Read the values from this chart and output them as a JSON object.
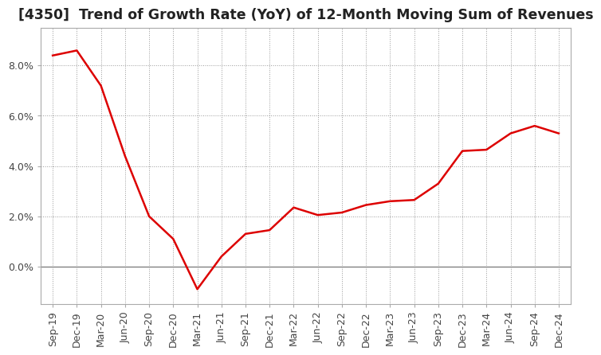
{
  "title": "[4350]  Trend of Growth Rate (YoY) of 12-Month Moving Sum of Revenues",
  "line_color": "#dd0000",
  "background_color": "#ffffff",
  "plot_bg_color": "#ffffff",
  "grid_color": "#999999",
  "x_labels": [
    "Sep-19",
    "Dec-19",
    "Mar-20",
    "Jun-20",
    "Sep-20",
    "Dec-20",
    "Mar-21",
    "Jun-21",
    "Sep-21",
    "Dec-21",
    "Mar-22",
    "Jun-22",
    "Sep-22",
    "Dec-22",
    "Mar-23",
    "Jun-23",
    "Sep-23",
    "Dec-23",
    "Mar-24",
    "Jun-24",
    "Sep-24",
    "Dec-24"
  ],
  "y_values": [
    0.084,
    0.086,
    0.072,
    0.044,
    0.02,
    0.011,
    -0.009,
    0.004,
    0.013,
    0.0145,
    0.0235,
    0.0205,
    0.0215,
    0.0245,
    0.026,
    0.0265,
    0.033,
    0.046,
    0.0465,
    0.053,
    0.056,
    0.053
  ],
  "ylim": [
    -0.015,
    0.095
  ],
  "yticks": [
    0.0,
    0.02,
    0.04,
    0.06,
    0.08
  ],
  "title_fontsize": 12.5,
  "tick_fontsize": 9,
  "line_width": 1.8
}
